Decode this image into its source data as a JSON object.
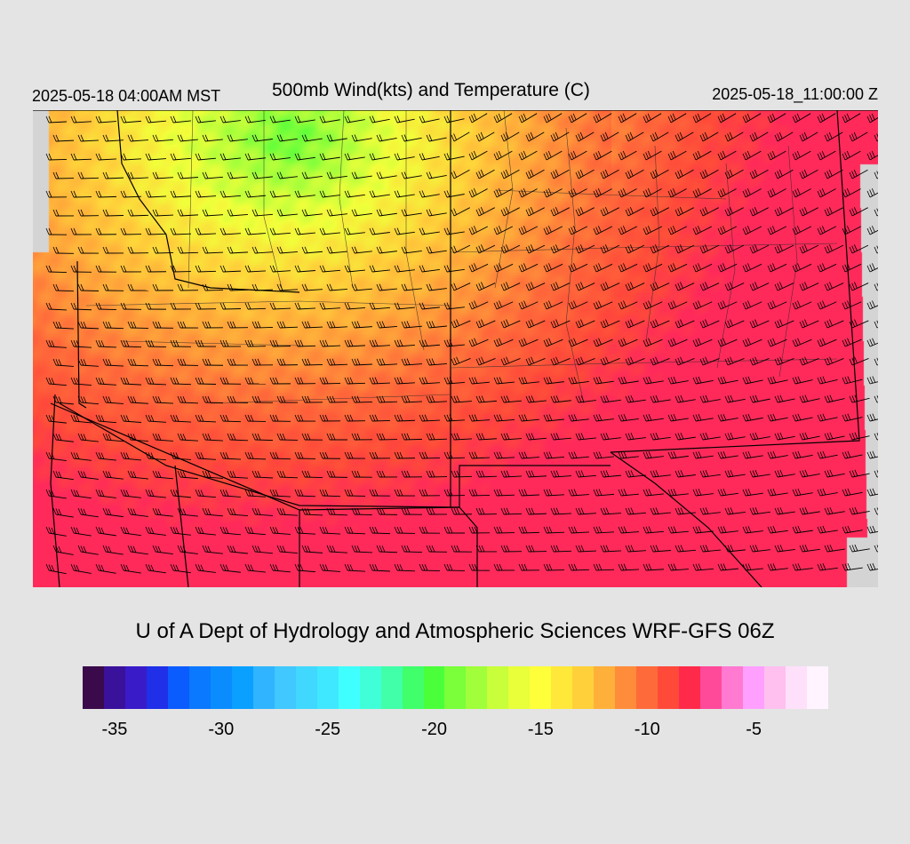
{
  "header": {
    "local_time": "2025-05-18 04:00AM MST",
    "title": "500mb Wind(kts) and Temperature (C)",
    "valid_time": "2025-05-18_11:00:00 Z"
  },
  "credit": "U of A Dept of Hydrology and Atmospheric Sciences WRF-GFS 06Z",
  "colorbar": {
    "colors": [
      "#3a0a4a",
      "#3a119a",
      "#3a1bc8",
      "#1f30e8",
      "#0a5cff",
      "#0a78ff",
      "#0a8cff",
      "#0aa0ff",
      "#30b4ff",
      "#40c8ff",
      "#40d8ff",
      "#40e8ff",
      "#40ffff",
      "#40ffd8",
      "#40ffa8",
      "#40ff6a",
      "#4aff3a",
      "#7aff3a",
      "#a0ff3a",
      "#c8ff3a",
      "#e8ff3a",
      "#ffff3a",
      "#ffe83a",
      "#ffd03a",
      "#ffb03a",
      "#ff8c3a",
      "#ff6a3a",
      "#ff4a3a",
      "#ff2a4a",
      "#ff4a9a",
      "#ff7ad0",
      "#ffa0ff",
      "#ffc0f0",
      "#ffe0fa",
      "#fff4ff"
    ],
    "tick_labels": [
      "-35",
      "-30",
      "-25",
      "-20",
      "-15",
      "-10",
      "-5"
    ],
    "tick_values": [
      -35,
      -30,
      -25,
      -20,
      -15,
      -10,
      -5
    ],
    "vmin": -36,
    "vmax": -1
  }
}
